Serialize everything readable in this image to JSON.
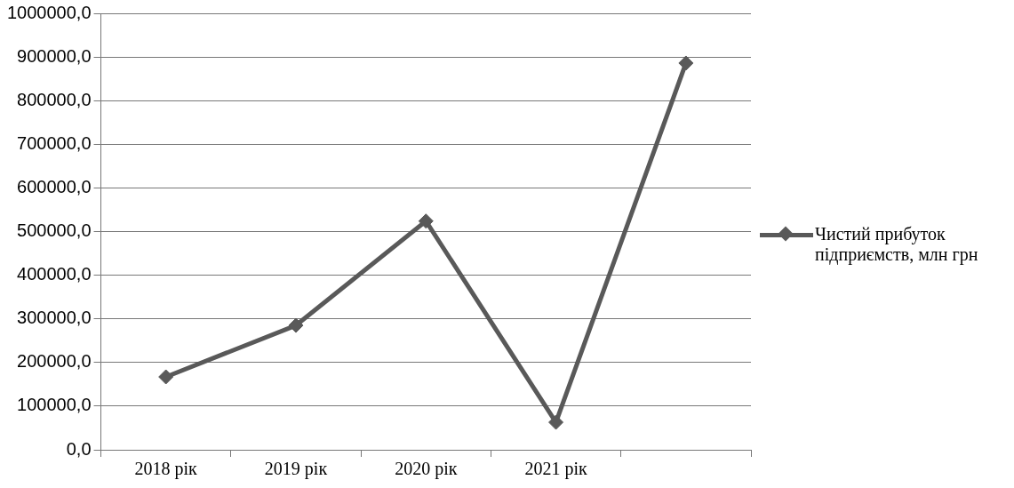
{
  "chart_data": {
    "type": "line",
    "categories": [
      "2018 рік",
      "2019 рік",
      "2020 рік",
      "2021 рік",
      null
    ],
    "series": [
      {
        "name": "Чистий прибуток підприємств, млн грн",
        "color": "#595959",
        "values": [
          167000,
          285000,
          524000,
          63000,
          886000
        ]
      }
    ],
    "ylim": [
      0,
      1000000
    ],
    "yticks": [
      {
        "value": 0,
        "label": "0,0"
      },
      {
        "value": 100000,
        "label": "100000,0"
      },
      {
        "value": 200000,
        "label": "200000,0"
      },
      {
        "value": 300000,
        "label": "300000,0"
      },
      {
        "value": 400000,
        "label": "400000,0"
      },
      {
        "value": 500000,
        "label": "500000,0"
      },
      {
        "value": 600000,
        "label": "600000,0"
      },
      {
        "value": 700000,
        "label": "700000,0"
      },
      {
        "value": 800000,
        "label": "800000,0"
      },
      {
        "value": 900000,
        "label": "900000,0"
      },
      {
        "value": 1000000,
        "label": "1000000,0"
      }
    ],
    "grid": "y",
    "legend": "right",
    "marker": "diamond",
    "line_style": "solid"
  }
}
